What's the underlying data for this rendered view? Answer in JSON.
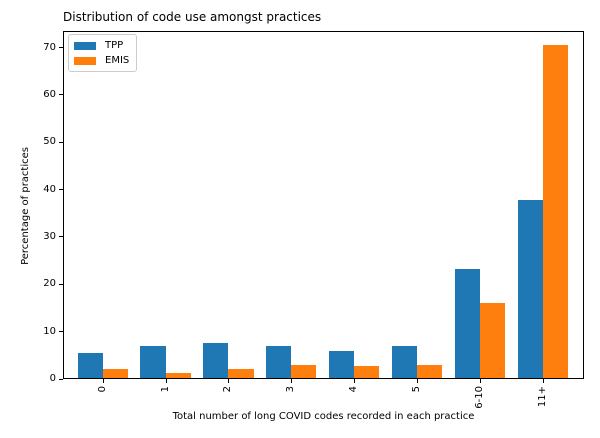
{
  "chart_data": {
    "type": "bar",
    "title": "Distribution of code use amongst practices",
    "xlabel": "Total number of long COVID codes recorded in each practice",
    "ylabel": "Percentage of practices",
    "categories": [
      "0",
      "1",
      "2",
      "3",
      "4",
      "5",
      "6-10",
      "11+"
    ],
    "series": [
      {
        "name": "TPP",
        "color": "#1f77b4",
        "values": [
          5.2,
          6.7,
          7.3,
          6.8,
          5.8,
          6.8,
          23.0,
          37.5
        ]
      },
      {
        "name": "EMIS",
        "color": "#ff7f0e",
        "values": [
          2.0,
          1.1,
          2.0,
          2.7,
          2.6,
          2.8,
          15.8,
          70.4
        ]
      }
    ],
    "ylim": [
      0,
      73.5
    ],
    "yticks": [
      0,
      10,
      20,
      30,
      40,
      50,
      60,
      70
    ],
    "legend_position": "upper left",
    "grid": false,
    "background_color": "#ffffff",
    "axis_color": "#000000"
  }
}
